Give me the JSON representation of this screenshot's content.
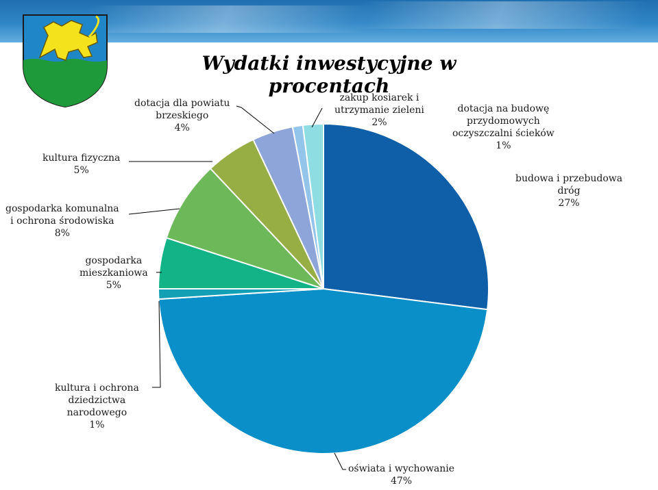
{
  "title": "Wydatki inwestycyjne w procentach",
  "chart_data": {
    "type": "pie",
    "title": "Wydatki inwestycyjne w procentach",
    "start": "12 o'clock",
    "direction": "clockwise",
    "slices": [
      {
        "label": "budowa i przebudowa dróg",
        "value": 27,
        "text": "27%",
        "color": "#0e5fa8"
      },
      {
        "label": "oświata i wychowanie",
        "value": 47,
        "text": "47%",
        "color": "#0b8fc8"
      },
      {
        "label": "kultura i ochrona dziedzictwa narodowego",
        "value": 1,
        "text": "1%",
        "color": "#139fb4"
      },
      {
        "label": "gospodarka mieszkaniowa",
        "value": 5,
        "text": "5%",
        "color": "#11b387"
      },
      {
        "label": "gospodarka komunalna i ochrona środowiska",
        "value": 8,
        "text": "8%",
        "color": "#6db858"
      },
      {
        "label": "kultura fizyczna",
        "value": 5,
        "text": "5%",
        "color": "#97ae45"
      },
      {
        "label": "dotacja dla powiatu brzeskiego",
        "value": 4,
        "text": "4%",
        "color": "#8da5d8"
      },
      {
        "label": "dotacja na budowę przydomowych oczyszczalni ścieków",
        "value": 1,
        "text": "1%",
        "color": "#93c4ea"
      },
      {
        "label": "zakup kosiarek i utrzymanie zieleni",
        "value": 2,
        "text": "2%",
        "color": "#8ddde2"
      }
    ]
  },
  "labels": {
    "roads": {
      "l1": "budowa i przebudowa",
      "l2": "dróg",
      "pct": "27%"
    },
    "education": {
      "l1": "oświata i wychowanie",
      "pct": "47%"
    },
    "culture": {
      "l1": "kultura i ochrona",
      "l2": "dziedzictwa",
      "l3": "narodowego",
      "pct": "1%"
    },
    "housing": {
      "l1": "gospodarka",
      "l2": "mieszkaniowa",
      "pct": "5%"
    },
    "communal": {
      "l1": "gospodarka komunalna",
      "l2": "i ochrona środowiska",
      "pct": "8%"
    },
    "sport": {
      "l1": "kultura fizyczna",
      "pct": "5%"
    },
    "county": {
      "l1": "dotacja dla powiatu",
      "l2": "brzeskiego",
      "pct": "4%"
    },
    "mowers": {
      "l1": "zakup kosiarek i",
      "l2": "utrzymanie zieleni",
      "pct": "2%"
    },
    "sewage": {
      "l1": "dotacja na budowę",
      "l2": "przydomowych",
      "l3": "oczyszczalni ścieków",
      "pct": "1%"
    }
  }
}
